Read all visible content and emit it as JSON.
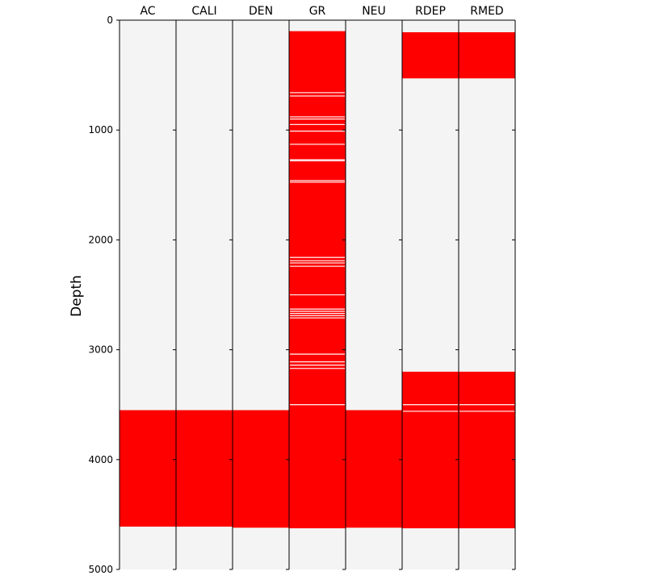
{
  "chart_data": {
    "type": "heatmap",
    "title": "",
    "ylabel": "Depth",
    "ylim": [
      0,
      5000
    ],
    "y_inverted": true,
    "yticks": [
      0,
      1000,
      2000,
      3000,
      4000,
      5000
    ],
    "background_color": "#f4f4f4",
    "fill_color": "#ff0000",
    "gap_color": "#ffffff",
    "columns": [
      {
        "name": "AC",
        "present": [
          [
            3550,
            4610
          ]
        ],
        "gaps": []
      },
      {
        "name": "CALI",
        "present": [
          [
            3550,
            4610
          ]
        ],
        "gaps": []
      },
      {
        "name": "DEN",
        "present": [
          [
            3550,
            4620
          ]
        ],
        "gaps": []
      },
      {
        "name": "GR",
        "present": [
          [
            100,
            4625
          ]
        ],
        "gaps": [
          660,
          690,
          880,
          900,
          950,
          1010,
          1130,
          1270,
          1280,
          1460,
          1475,
          2160,
          2190,
          2210,
          2240,
          2500,
          2630,
          2650,
          2670,
          2690,
          2710,
          3040,
          3110,
          3140,
          3170,
          3500
        ]
      },
      {
        "name": "NEU",
        "present": [
          [
            3550,
            4620
          ]
        ],
        "gaps": []
      },
      {
        "name": "RDEP",
        "present": [
          [
            110,
            530
          ],
          [
            3200,
            4625
          ]
        ],
        "gaps": [
          3500,
          3560
        ]
      },
      {
        "name": "RMED",
        "present": [
          [
            110,
            530
          ],
          [
            3200,
            4625
          ]
        ],
        "gaps": [
          3500,
          3560
        ]
      }
    ]
  }
}
